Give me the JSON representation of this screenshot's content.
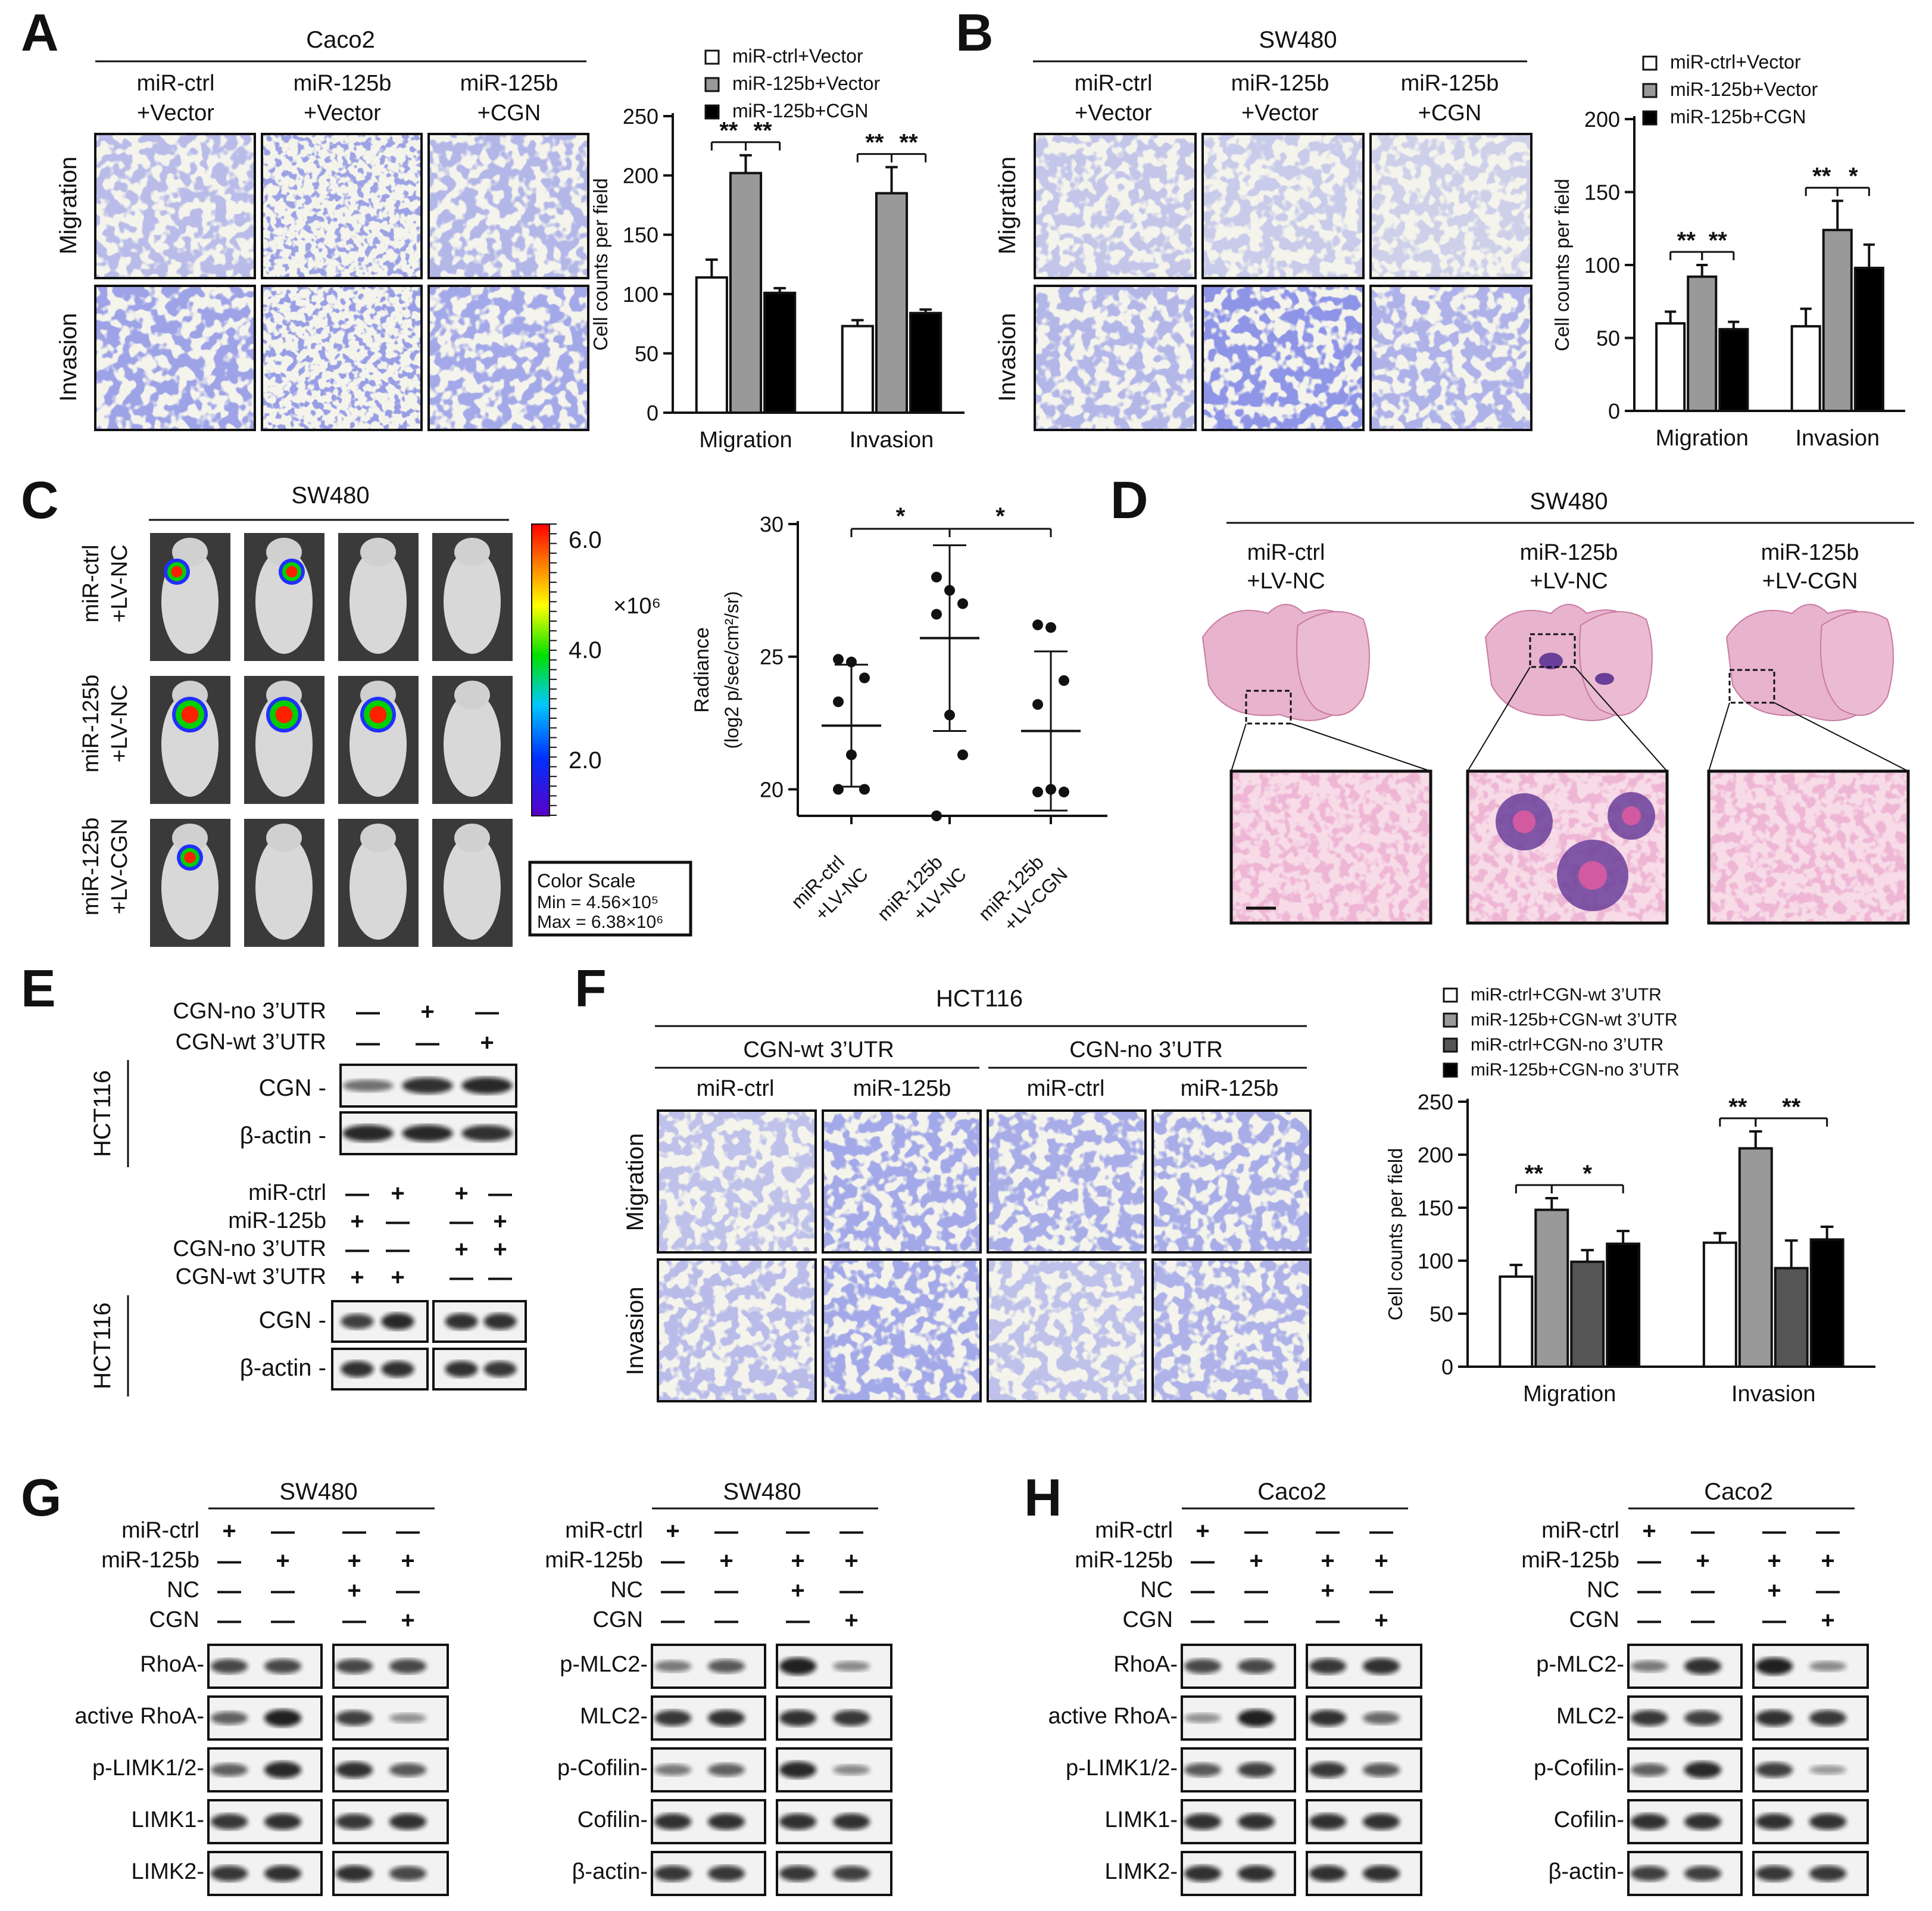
{
  "panels": {
    "A": {
      "letter": "A",
      "cell_line": "Caco2",
      "columns": [
        [
          "miR-ctrl",
          "+Vector"
        ],
        [
          "miR-125b",
          "+Vector"
        ],
        [
          "miR-125b",
          "+CGN"
        ]
      ],
      "rows": [
        "Migration",
        "Invasion"
      ]
    },
    "B": {
      "letter": "B",
      "cell_line": "SW480",
      "columns": [
        [
          "miR-ctrl",
          "+Vector"
        ],
        [
          "miR-125b",
          "+Vector"
        ],
        [
          "miR-125b",
          "+CGN"
        ]
      ],
      "rows": [
        "Migration",
        "Invasion"
      ]
    },
    "C": {
      "letter": "C",
      "cell_line": "SW480",
      "rows": [
        [
          "miR-ctrl",
          "+LV-NC"
        ],
        [
          "miR-125b",
          "+LV-NC"
        ],
        [
          "miR-125b",
          "+LV-CGN"
        ]
      ],
      "colorbar_ticks": [
        "6.0",
        "4.0",
        "2.0"
      ],
      "multiplier": "×10⁶",
      "color_scale_title": "Color Scale",
      "color_scale_min": "Min = 4.56×10⁵",
      "color_scale_max": "Max = 6.38×10⁶"
    },
    "D": {
      "letter": "D",
      "cell_line": "SW480",
      "columns": [
        [
          "miR-ctrl",
          "+LV-NC"
        ],
        [
          "miR-125b",
          "+LV-NC"
        ],
        [
          "miR-125b",
          "+LV-CGN"
        ]
      ]
    },
    "E": {
      "letter": "E",
      "top_rows": [
        {
          "label": "CGN-no 3’UTR",
          "signs": [
            "—",
            "+",
            "—"
          ]
        },
        {
          "label": "CGN-wt 3’UTR",
          "signs": [
            "—",
            "—",
            "+"
          ]
        }
      ],
      "top_blots": [
        "CGN -",
        "β-actin -"
      ],
      "bottom_rows": [
        {
          "label": "miR-ctrl",
          "signs": [
            "—",
            "+",
            "+",
            "—"
          ]
        },
        {
          "label": "miR-125b",
          "signs": [
            "+",
            "—",
            "—",
            "+"
          ]
        },
        {
          "label": "CGN-no 3’UTR",
          "signs": [
            "—",
            "—",
            "+",
            "+"
          ]
        },
        {
          "label": "CGN-wt 3’UTR",
          "signs": [
            "+",
            "+",
            "—",
            "—"
          ]
        }
      ],
      "bottom_blots": [
        "CGN -",
        "β-actin -"
      ],
      "side_label": "HCT116"
    },
    "F": {
      "letter": "F",
      "cell_line": "HCT116",
      "groups": [
        "CGN-wt 3’UTR",
        "CGN-no 3’UTR"
      ],
      "columns": [
        "miR-ctrl",
        "miR-125b",
        "miR-ctrl",
        "miR-125b"
      ],
      "rows": [
        "Migration",
        "Invasion"
      ]
    },
    "G": {
      "letter": "G",
      "left": {
        "cell_line": "SW480",
        "blots": [
          "RhoA-",
          "active RhoA-",
          "p-LIMK1/2-",
          "LIMK1-",
          "LIMK2-"
        ]
      },
      "right": {
        "cell_line": "SW480",
        "blots": [
          "p-MLC2-",
          "MLC2-",
          "p-Cofilin-",
          "Cofilin-",
          "β-actin-"
        ]
      }
    },
    "H": {
      "letter": "H",
      "left": {
        "cell_line": "Caco2",
        "blots": [
          "RhoA-",
          "active RhoA-",
          "p-LIMK1/2-",
          "LIMK1-",
          "LIMK2-"
        ]
      },
      "right": {
        "cell_line": "Caco2",
        "blots": [
          "p-MLC2-",
          "MLC2-",
          "p-Cofilin-",
          "Cofilin-",
          "β-actin-"
        ]
      }
    },
    "treatment_rows": [
      {
        "label": "miR-ctrl",
        "signs": [
          "+",
          "—",
          "—",
          "—"
        ]
      },
      {
        "label": "miR-125b",
        "signs": [
          "—",
          "+",
          "+",
          "+"
        ]
      },
      {
        "label": "NC",
        "signs": [
          "—",
          "—",
          "+",
          "—"
        ]
      },
      {
        "label": "CGN",
        "signs": [
          "—",
          "—",
          "—",
          "+"
        ]
      }
    ]
  },
  "chart_data": [
    {
      "type": "bar",
      "panel": "A",
      "categories": [
        "Migration",
        "Invasion"
      ],
      "series": [
        {
          "name": "miR-ctrl+Vector",
          "values": [
            114,
            73
          ],
          "errors": [
            15,
            5
          ],
          "color": "#ffffff"
        },
        {
          "name": "miR-125b+Vector",
          "values": [
            202,
            185
          ],
          "errors": [
            15,
            22
          ],
          "color": "#999999"
        },
        {
          "name": "miR-125b+CGN",
          "values": [
            101,
            84
          ],
          "errors": [
            4,
            3
          ],
          "color": "#000000"
        }
      ],
      "ylabel": "Cell counts per field",
      "ylim": [
        0,
        250
      ],
      "yticks": [
        0,
        50,
        100,
        150,
        200,
        250
      ],
      "significance": [
        [
          "**",
          "**"
        ],
        [
          "**",
          "**"
        ]
      ]
    },
    {
      "type": "bar",
      "panel": "B",
      "categories": [
        "Migration",
        "Invasion"
      ],
      "series": [
        {
          "name": "miR-ctrl+Vector",
          "values": [
            60,
            58
          ],
          "errors": [
            8,
            12
          ],
          "color": "#ffffff"
        },
        {
          "name": "miR-125b+Vector",
          "values": [
            92,
            124
          ],
          "errors": [
            8,
            20
          ],
          "color": "#999999"
        },
        {
          "name": "miR-125b+CGN",
          "values": [
            56,
            98
          ],
          "errors": [
            5,
            16
          ],
          "color": "#000000"
        }
      ],
      "ylabel": "Cell counts per field",
      "ylim": [
        0,
        200
      ],
      "yticks": [
        0,
        50,
        100,
        150,
        200
      ],
      "significance": [
        [
          "**",
          "**"
        ],
        [
          "**",
          "*"
        ]
      ]
    },
    {
      "type": "scatter",
      "panel": "C",
      "categories": [
        "miR-ctrl +LV-NC",
        "miR-125b +LV-NC",
        "miR-125b +LV-CGN"
      ],
      "points": [
        [
          24.9,
          24.8,
          24.2,
          23.3,
          21.3,
          20.0,
          20.0
        ],
        [
          28.0,
          27.5,
          27.0,
          26.6,
          22.8,
          21.3,
          19.0
        ],
        [
          26.2,
          26.1,
          24.1,
          23.2,
          20.0,
          19.9,
          19.9
        ]
      ],
      "means": [
        22.4,
        25.7,
        22.2
      ],
      "sd": [
        2.3,
        3.5,
        3.0
      ],
      "ylabel": "Radiance (log2 p/sec/cm²/sr)",
      "ylim": [
        19,
        30
      ],
      "yticks": [
        20,
        25,
        30
      ],
      "significance": [
        "*",
        "*"
      ]
    },
    {
      "type": "bar",
      "panel": "F",
      "categories": [
        "Migration",
        "Invasion"
      ],
      "series": [
        {
          "name": "miR-ctrl+CGN-wt 3’UTR",
          "values": [
            85,
            117
          ],
          "errors": [
            11,
            9
          ],
          "color": "#ffffff"
        },
        {
          "name": "miR-125b+CGN-wt 3’UTR",
          "values": [
            148,
            206
          ],
          "errors": [
            11,
            16
          ],
          "color": "#999999"
        },
        {
          "name": "miR-ctrl+CGN-no 3’UTR",
          "values": [
            99,
            93
          ],
          "errors": [
            11,
            26
          ],
          "color": "#555555"
        },
        {
          "name": "miR-125b+CGN-no 3’UTR",
          "values": [
            116,
            120
          ],
          "errors": [
            12,
            12
          ],
          "color": "#000000"
        }
      ],
      "ylabel": "Cell counts per field",
      "ylim": [
        0,
        250
      ],
      "yticks": [
        0,
        50,
        100,
        150,
        200,
        250
      ],
      "significance": [
        [
          "**",
          "*"
        ],
        [
          "**",
          "**"
        ]
      ]
    }
  ],
  "palette": {
    "cell_stain": "#4a52c8",
    "tissue": "#e6a7c6",
    "tumor": "#6a3f9a",
    "blot": "#111111"
  }
}
